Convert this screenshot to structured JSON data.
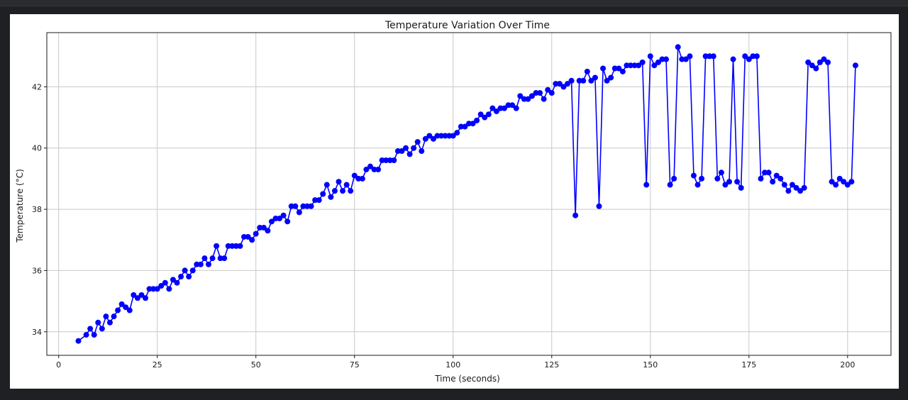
{
  "colors": {
    "background": "#1f2023",
    "figure": "#ffffff",
    "series_line": "#0000ff",
    "grid": "#c8c8c8",
    "axis": "#1a1a1a"
  },
  "chart_data": {
    "type": "line",
    "title": "Temperature Variation Over Time",
    "xlabel": "Time (seconds)",
    "ylabel": "Temperature (°C)",
    "xlim": [
      -3,
      211
    ],
    "ylim": [
      33.23,
      43.77
    ],
    "xticks": [
      0,
      25,
      50,
      75,
      100,
      125,
      150,
      175,
      200
    ],
    "yticks": [
      34,
      36,
      38,
      40,
      42
    ],
    "grid": true,
    "markers": "circle",
    "series": [
      {
        "x": [
          5,
          7,
          8,
          9,
          10,
          11,
          12,
          13,
          14,
          15,
          16,
          17,
          18,
          19,
          20,
          21,
          22,
          23,
          24,
          25,
          26,
          27,
          28,
          29,
          30,
          31,
          32,
          33,
          34,
          35,
          36,
          37,
          38,
          39,
          40,
          41,
          42,
          43,
          44,
          45,
          46,
          47,
          48,
          49,
          50,
          51,
          52,
          53,
          54,
          55,
          56,
          57,
          58,
          59,
          60,
          61,
          62,
          63,
          64,
          65,
          66,
          67,
          68,
          69,
          70,
          71,
          72,
          73,
          74,
          75,
          76,
          77,
          78,
          79,
          80,
          81,
          82,
          83,
          84,
          85,
          86,
          87,
          88,
          89,
          90,
          91,
          92,
          93,
          94,
          95,
          96,
          97,
          98,
          99,
          100,
          101,
          102,
          103,
          104,
          105,
          106,
          107,
          108,
          109,
          110,
          111,
          112,
          113,
          114,
          115,
          116,
          117,
          118,
          119,
          120,
          121,
          122,
          123,
          124,
          125,
          126,
          127,
          128,
          129,
          130,
          131,
          132,
          133,
          134,
          135,
          136,
          137,
          138,
          139,
          140,
          141,
          142,
          143,
          144,
          145,
          146,
          147,
          148,
          149,
          150,
          151,
          152,
          153,
          154,
          155,
          156,
          157,
          158,
          159,
          160,
          161,
          162,
          163,
          164,
          165,
          166,
          167,
          168,
          169,
          170,
          171,
          172,
          173,
          174,
          175,
          176,
          177,
          178,
          179,
          180,
          181,
          182,
          183,
          184,
          185,
          186,
          187,
          188,
          189,
          190,
          191,
          192,
          193,
          194,
          195,
          196,
          197,
          198,
          199,
          200,
          201,
          202
        ],
        "y": [
          33.7,
          33.9,
          34.1,
          33.9,
          34.3,
          34.1,
          34.5,
          34.3,
          34.5,
          34.7,
          34.9,
          34.8,
          34.7,
          35.2,
          35.1,
          35.2,
          35.1,
          35.4,
          35.4,
          35.4,
          35.5,
          35.6,
          35.4,
          35.7,
          35.6,
          35.8,
          36.0,
          35.8,
          36.0,
          36.2,
          36.2,
          36.4,
          36.2,
          36.4,
          36.8,
          36.4,
          36.4,
          36.8,
          36.8,
          36.8,
          36.8,
          37.1,
          37.1,
          37.0,
          37.2,
          37.4,
          37.4,
          37.3,
          37.6,
          37.7,
          37.7,
          37.8,
          37.6,
          38.1,
          38.1,
          37.9,
          38.1,
          38.1,
          38.1,
          38.3,
          38.3,
          38.5,
          38.8,
          38.4,
          38.6,
          38.9,
          38.6,
          38.8,
          38.6,
          39.1,
          39.0,
          39.0,
          39.3,
          39.4,
          39.3,
          39.3,
          39.6,
          39.6,
          39.6,
          39.6,
          39.9,
          39.9,
          40.0,
          39.8,
          40.0,
          40.2,
          39.9,
          40.3,
          40.4,
          40.3,
          40.4,
          40.4,
          40.4,
          40.4,
          40.4,
          40.5,
          40.7,
          40.7,
          40.8,
          40.8,
          40.9,
          41.1,
          41.0,
          41.1,
          41.3,
          41.2,
          41.3,
          41.3,
          41.4,
          41.4,
          41.3,
          41.7,
          41.6,
          41.6,
          41.7,
          41.8,
          41.8,
          41.6,
          41.9,
          41.8,
          42.1,
          42.1,
          42.0,
          42.1,
          42.2,
          37.8,
          42.2,
          42.2,
          42.5,
          42.2,
          42.3,
          38.1,
          42.6,
          42.2,
          42.3,
          42.6,
          42.6,
          42.5,
          42.7,
          42.7,
          42.7,
          42.7,
          42.8,
          38.8,
          43.0,
          42.7,
          42.8,
          42.9,
          42.9,
          38.8,
          39.0,
          43.3,
          42.9,
          42.9,
          43.0,
          39.1,
          38.8,
          39.0,
          43.0,
          43.0,
          43.0,
          39.0,
          39.2,
          38.8,
          38.9,
          42.9,
          38.9,
          38.7,
          43.0,
          42.9,
          43.0,
          43.0,
          39.0,
          39.2,
          39.2,
          38.9,
          39.1,
          39.0,
          38.8,
          38.6,
          38.8,
          38.7,
          38.6,
          38.7,
          42.8,
          42.7,
          42.6,
          42.8,
          42.9,
          42.8,
          38.9,
          38.8,
          39.0,
          38.9,
          38.8,
          38.9,
          42.7
        ]
      }
    ]
  }
}
